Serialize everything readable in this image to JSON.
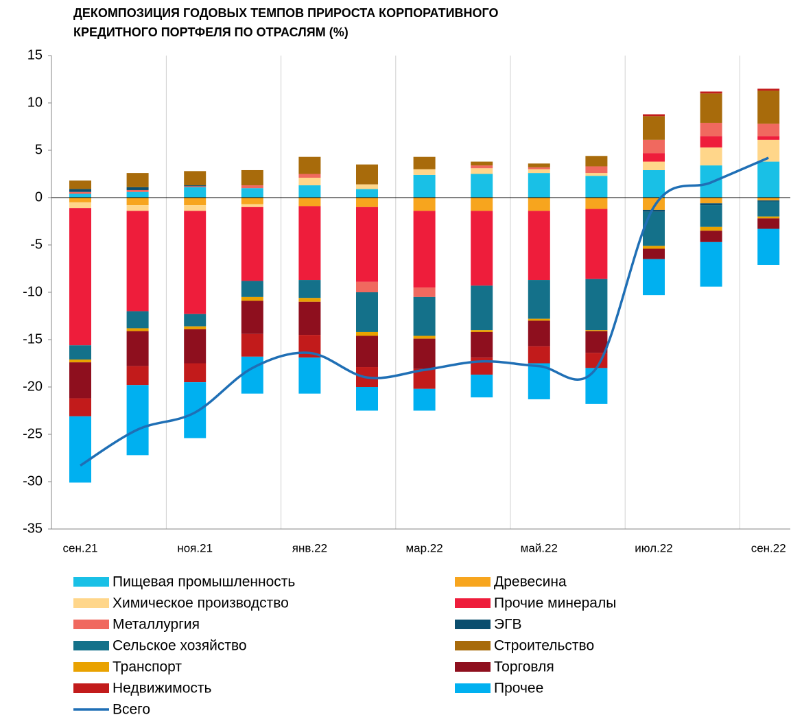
{
  "chart_data": {
    "type": "bar",
    "stacked": true,
    "title": [
      "ДЕКОМПОЗИЦИЯ ГОДОВЫХ ТЕМПОВ ПРИРОСТА КОРПОРАТИВНОГО",
      "КРЕДИТНОГО ПОРТФЕЛЯ ПО ОТРАСЛЯМ (%)"
    ],
    "categories": [
      "сен.21",
      null,
      "ноя.21",
      null,
      "янв.22",
      null,
      "мар.22",
      null,
      "май.22",
      null,
      "июл.22",
      null,
      "сен.22"
    ],
    "ylim": [
      -35,
      15
    ],
    "yticks": [
      15,
      10,
      5,
      0,
      -5,
      -10,
      -15,
      -20,
      -25,
      -30,
      -35
    ],
    "series": [
      {
        "name": "Пищевая промышленность",
        "color": "#19c0e6",
        "values": [
          0.4,
          0.6,
          1.1,
          1.0,
          1.3,
          0.9,
          2.4,
          2.5,
          2.6,
          2.3,
          2.9,
          3.4,
          3.8
        ]
      },
      {
        "name": "Древесина",
        "color": "#f7a51e",
        "values": [
          -0.5,
          -0.8,
          -0.8,
          -0.7,
          -0.9,
          -1.0,
          -1.4,
          -1.4,
          -1.4,
          -1.2,
          -1.3,
          -0.6,
          -0.3
        ]
      },
      {
        "name": "Химическое производство",
        "color": "#ffd68a",
        "values": [
          -0.6,
          -0.6,
          -0.6,
          -0.3,
          0.8,
          0.5,
          0.6,
          0.6,
          0.4,
          0.3,
          0.9,
          1.9,
          2.3
        ]
      },
      {
        "name": "Прочие минералы",
        "color": "#ee1d3b",
        "values": [
          -14.5,
          -10.6,
          -10.9,
          -7.8,
          -7.8,
          -7.9,
          -8.1,
          -7.9,
          -7.3,
          -7.4,
          0.9,
          1.2,
          0.4
        ]
      },
      {
        "name": "Металлургия",
        "color": "#f0695f",
        "values": [
          0.2,
          0.2,
          0.1,
          0.3,
          0.4,
          -1.1,
          -1.0,
          0.3,
          0.2,
          0.7,
          1.4,
          1.4,
          1.3
        ]
      },
      {
        "name": "ЭГВ",
        "color": "#0b4e6e",
        "values": [
          0.3,
          0.3,
          0.1,
          0.0,
          0.0,
          0.0,
          0.0,
          0.0,
          0.0,
          0.0,
          -0.2,
          -0.2,
          -0.1
        ]
      },
      {
        "name": "Сельское хозяйство",
        "color": "#14718a",
        "values": [
          -1.5,
          -1.8,
          -1.3,
          -1.7,
          -1.9,
          -4.2,
          -4.1,
          -4.7,
          -4.1,
          -5.4,
          -3.6,
          -2.3,
          -1.6
        ]
      },
      {
        "name": "Строительство",
        "color": "#a86b0b",
        "values": [
          0.9,
          1.5,
          1.5,
          1.6,
          1.8,
          2.1,
          1.3,
          0.4,
          0.4,
          1.1,
          2.5,
          3.1,
          3.5
        ]
      },
      {
        "name": "Транспорт",
        "color": "#e9a200",
        "values": [
          -0.3,
          -0.3,
          -0.3,
          -0.4,
          -0.4,
          -0.4,
          -0.3,
          -0.2,
          -0.2,
          -0.1,
          -0.3,
          -0.4,
          -0.2
        ]
      },
      {
        "name": "Торговля",
        "color": "#8e0f1e",
        "values": [
          -3.8,
          -3.7,
          -3.6,
          -3.5,
          -3.5,
          -3.3,
          -3.2,
          -2.7,
          -2.7,
          -2.3,
          -1.1,
          -1.2,
          -1.1
        ]
      },
      {
        "name": "Недвижимость",
        "color": "#c21b1b",
        "values": [
          -1.9,
          -2.0,
          -2.0,
          -2.4,
          -2.4,
          -2.1,
          -2.1,
          -1.8,
          -1.8,
          -1.6,
          0.2,
          0.2,
          0.2
        ]
      },
      {
        "name": "Прочее",
        "color": "#00b0f0",
        "values": [
          -7.0,
          -7.4,
          -5.9,
          -3.9,
          -3.8,
          -2.5,
          -2.3,
          -2.4,
          -3.8,
          -3.8,
          -3.8,
          -4.7,
          -3.8
        ]
      },
      {
        "name": "Всего",
        "color": "#1f6fb5",
        "type": "line",
        "values": [
          -28.3,
          -24.5,
          -22.7,
          -18.0,
          -16.4,
          -19.0,
          -18.2,
          -17.3,
          -17.8,
          -18.0,
          -1.0,
          1.6,
          4.2
        ]
      }
    ]
  }
}
